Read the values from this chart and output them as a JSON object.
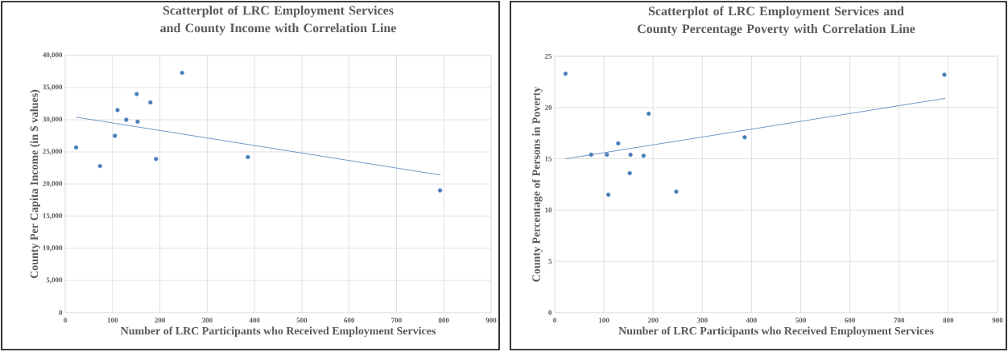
{
  "chart_data": [
    {
      "type": "scatter",
      "title": "Scatterplot of LRC Employment Services and County Income with Correlation Line",
      "xlabel": "Number of LRC Participants who Received Employment Services",
      "ylabel": "County Per Capita Income (in $ values)",
      "xlim": [
        0,
        900
      ],
      "xticks": [
        0,
        100,
        200,
        300,
        400,
        500,
        600,
        700,
        800,
        900
      ],
      "ylim": [
        0,
        40000
      ],
      "yticks": [
        0,
        {
          "value": 5000,
          "label": "5,000"
        },
        {
          "value": 10000,
          "label": "10,000"
        },
        {
          "value": 15000,
          "label": "15,000"
        },
        {
          "value": 20000,
          "label": "20,000"
        },
        {
          "value": 25000,
          "label": "25,000"
        },
        {
          "value": 30000,
          "label": "30,000"
        },
        {
          "value": 35000,
          "label": "35,000"
        },
        {
          "value": 40000,
          "label": "40,000"
        }
      ],
      "grid": true,
      "marker": "circle",
      "series": [
        {
          "color": "#4a7ebb",
          "x": [
            23,
            73.5,
            105,
            110.5,
            129,
            151,
            153,
            180,
            192,
            247,
            386,
            792
          ],
          "values": [
            25700,
            22800,
            27500,
            31500,
            30000,
            34000,
            29700,
            32700,
            23900,
            37300,
            24200,
            19000
          ]
        },
        {
          "type": "line",
          "marker": "none",
          "color": "#4a7ebb",
          "x": [
            23,
            793
          ],
          "values": [
            30400,
            21400
          ]
        }
      ]
    },
    {
      "type": "scatter",
      "title": "Scatterplot of LRC Employment Services and County Percentage Poverty with Correlation Line",
      "xlabel": "Number of LRC Participants who Received Employment Services",
      "ylabel": "County Percentage of Persons in Poverty",
      "xlim": [
        0,
        900
      ],
      "xticks": [
        0,
        100,
        200,
        300,
        400,
        500,
        600,
        700,
        800,
        900
      ],
      "ylim": [
        0,
        25
      ],
      "yticks": [
        0,
        5,
        10,
        15,
        20,
        25
      ],
      "grid": true,
      "marker": "circle",
      "series": [
        {
          "color": "#4a7ebb",
          "x": [
            22,
            74,
            106,
            109,
            129,
            152.5,
            154,
            180.6,
            191,
            247,
            386,
            792
          ],
          "values": [
            23.3,
            15.4,
            15.4,
            11.5,
            16.5,
            13.6,
            15.4,
            15.3,
            19.4,
            11.8,
            17.1,
            23.2
          ]
        },
        {
          "type": "line",
          "marker": "none",
          "color": "#4a7ebb",
          "x": [
            22,
            794
          ],
          "values": [
            15.0,
            20.9
          ]
        }
      ]
    }
  ]
}
